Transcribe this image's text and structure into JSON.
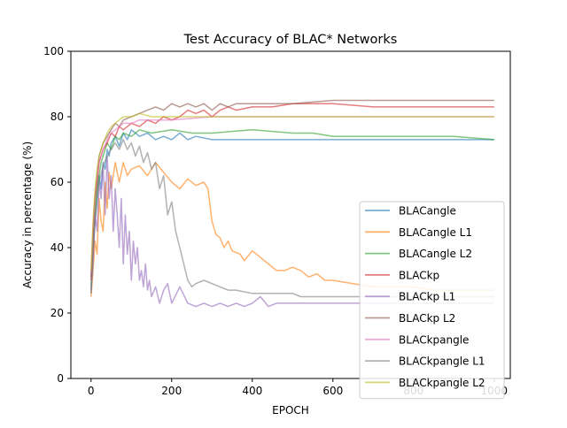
{
  "chart_data": {
    "type": "line",
    "title": "Test Accuracy of BLAC* Networks",
    "xlabel": "EPOCH",
    "ylabel": "Accuracy in percentage (%)",
    "xlim": [
      -50,
      1040
    ],
    "ylim": [
      0,
      100
    ],
    "xticks": [
      0,
      200,
      400,
      600,
      800,
      1000
    ],
    "yticks": [
      0,
      20,
      40,
      60,
      80,
      100
    ],
    "grid": false,
    "legend_position": "lower right",
    "series": [
      {
        "name": "BLACangle",
        "color": "#1f77b4",
        "points": [
          [
            0,
            26
          ],
          [
            5,
            40
          ],
          [
            10,
            48
          ],
          [
            15,
            55
          ],
          [
            20,
            62
          ],
          [
            25,
            58
          ],
          [
            30,
            66
          ],
          [
            35,
            64
          ],
          [
            40,
            70
          ],
          [
            45,
            68
          ],
          [
            50,
            72
          ],
          [
            60,
            74
          ],
          [
            70,
            71
          ],
          [
            80,
            75
          ],
          [
            90,
            73
          ],
          [
            100,
            76
          ],
          [
            120,
            74
          ],
          [
            140,
            75
          ],
          [
            160,
            73
          ],
          [
            180,
            74
          ],
          [
            200,
            73
          ],
          [
            220,
            75
          ],
          [
            240,
            73
          ],
          [
            260,
            74
          ],
          [
            300,
            73
          ],
          [
            350,
            73
          ],
          [
            400,
            73
          ],
          [
            600,
            73
          ],
          [
            800,
            73
          ],
          [
            1000,
            73
          ]
        ]
      },
      {
        "name": "BLACangle L1",
        "color": "#ff7f0e",
        "points": [
          [
            0,
            25
          ],
          [
            5,
            33
          ],
          [
            10,
            42
          ],
          [
            15,
            38
          ],
          [
            20,
            55
          ],
          [
            25,
            48
          ],
          [
            30,
            45
          ],
          [
            35,
            60
          ],
          [
            40,
            52
          ],
          [
            45,
            63
          ],
          [
            50,
            58
          ],
          [
            60,
            66
          ],
          [
            70,
            60
          ],
          [
            80,
            66
          ],
          [
            90,
            62
          ],
          [
            100,
            64
          ],
          [
            120,
            65
          ],
          [
            140,
            62
          ],
          [
            160,
            66
          ],
          [
            180,
            63
          ],
          [
            200,
            60
          ],
          [
            220,
            58
          ],
          [
            240,
            61
          ],
          [
            260,
            59
          ],
          [
            280,
            60
          ],
          [
            290,
            58
          ],
          [
            300,
            48
          ],
          [
            310,
            44
          ],
          [
            320,
            43
          ],
          [
            330,
            40
          ],
          [
            340,
            42
          ],
          [
            350,
            39
          ],
          [
            370,
            38
          ],
          [
            380,
            36
          ],
          [
            400,
            39
          ],
          [
            420,
            37
          ],
          [
            440,
            35
          ],
          [
            460,
            33
          ],
          [
            480,
            33
          ],
          [
            500,
            34
          ],
          [
            520,
            33
          ],
          [
            540,
            31
          ],
          [
            560,
            32
          ],
          [
            580,
            30
          ],
          [
            600,
            30
          ],
          [
            650,
            29
          ],
          [
            700,
            28
          ],
          [
            750,
            28
          ],
          [
            800,
            28
          ],
          [
            850,
            27
          ],
          [
            900,
            27
          ],
          [
            950,
            27
          ],
          [
            1000,
            27
          ]
        ]
      },
      {
        "name": "BLACangle L2",
        "color": "#2ca02c",
        "points": [
          [
            0,
            28
          ],
          [
            5,
            40
          ],
          [
            10,
            50
          ],
          [
            15,
            58
          ],
          [
            20,
            62
          ],
          [
            25,
            66
          ],
          [
            30,
            68
          ],
          [
            40,
            72
          ],
          [
            50,
            70
          ],
          [
            60,
            74
          ],
          [
            70,
            73
          ],
          [
            80,
            75
          ],
          [
            100,
            74
          ],
          [
            120,
            76
          ],
          [
            150,
            75
          ],
          [
            200,
            76
          ],
          [
            250,
            75
          ],
          [
            300,
            75
          ],
          [
            400,
            76
          ],
          [
            500,
            75
          ],
          [
            550,
            75
          ],
          [
            600,
            74
          ],
          [
            700,
            74
          ],
          [
            800,
            74
          ],
          [
            900,
            74
          ],
          [
            1000,
            73
          ]
        ]
      },
      {
        "name": "BLACkp",
        "color": "#d62728",
        "points": [
          [
            0,
            30
          ],
          [
            5,
            45
          ],
          [
            10,
            55
          ],
          [
            15,
            60
          ],
          [
            20,
            66
          ],
          [
            30,
            70
          ],
          [
            40,
            72
          ],
          [
            50,
            75
          ],
          [
            60,
            74
          ],
          [
            70,
            77
          ],
          [
            80,
            76
          ],
          [
            100,
            78
          ],
          [
            120,
            77
          ],
          [
            140,
            79
          ],
          [
            160,
            78
          ],
          [
            180,
            80
          ],
          [
            200,
            79
          ],
          [
            220,
            80
          ],
          [
            240,
            82
          ],
          [
            260,
            81
          ],
          [
            280,
            82
          ],
          [
            300,
            80
          ],
          [
            320,
            82
          ],
          [
            340,
            83
          ],
          [
            360,
            82
          ],
          [
            400,
            83
          ],
          [
            450,
            83
          ],
          [
            500,
            84
          ],
          [
            600,
            84
          ],
          [
            700,
            83
          ],
          [
            800,
            83
          ],
          [
            900,
            83
          ],
          [
            1000,
            83
          ]
        ]
      },
      {
        "name": "BLACkp L1",
        "color": "#9467bd",
        "points": [
          [
            0,
            27
          ],
          [
            5,
            35
          ],
          [
            10,
            50
          ],
          [
            15,
            45
          ],
          [
            20,
            60
          ],
          [
            25,
            55
          ],
          [
            30,
            65
          ],
          [
            35,
            50
          ],
          [
            40,
            68
          ],
          [
            45,
            55
          ],
          [
            50,
            62
          ],
          [
            55,
            45
          ],
          [
            60,
            58
          ],
          [
            65,
            50
          ],
          [
            70,
            40
          ],
          [
            75,
            55
          ],
          [
            80,
            35
          ],
          [
            85,
            50
          ],
          [
            90,
            38
          ],
          [
            95,
            45
          ],
          [
            100,
            30
          ],
          [
            105,
            42
          ],
          [
            110,
            35
          ],
          [
            115,
            40
          ],
          [
            120,
            30
          ],
          [
            125,
            33
          ],
          [
            130,
            28
          ],
          [
            135,
            35
          ],
          [
            140,
            27
          ],
          [
            145,
            30
          ],
          [
            150,
            25
          ],
          [
            160,
            28
          ],
          [
            170,
            23
          ],
          [
            180,
            27
          ],
          [
            190,
            29
          ],
          [
            200,
            23
          ],
          [
            220,
            28
          ],
          [
            240,
            23
          ],
          [
            260,
            22
          ],
          [
            280,
            23
          ],
          [
            300,
            22
          ],
          [
            320,
            23
          ],
          [
            340,
            22
          ],
          [
            360,
            23
          ],
          [
            380,
            22
          ],
          [
            400,
            23
          ],
          [
            420,
            25
          ],
          [
            440,
            22
          ],
          [
            460,
            23
          ],
          [
            500,
            23
          ],
          [
            600,
            23
          ],
          [
            700,
            23
          ],
          [
            800,
            23
          ],
          [
            900,
            23
          ],
          [
            1000,
            23
          ]
        ]
      },
      {
        "name": "BLACkp L2",
        "color": "#8c564b",
        "points": [
          [
            0,
            31
          ],
          [
            5,
            44
          ],
          [
            10,
            55
          ],
          [
            15,
            62
          ],
          [
            20,
            68
          ],
          [
            30,
            72
          ],
          [
            40,
            74
          ],
          [
            50,
            76
          ],
          [
            60,
            78
          ],
          [
            70,
            77
          ],
          [
            80,
            79
          ],
          [
            100,
            80
          ],
          [
            120,
            81
          ],
          [
            140,
            82
          ],
          [
            160,
            83
          ],
          [
            180,
            82
          ],
          [
            200,
            84
          ],
          [
            220,
            83
          ],
          [
            240,
            84
          ],
          [
            260,
            83
          ],
          [
            280,
            84
          ],
          [
            300,
            82
          ],
          [
            320,
            84
          ],
          [
            340,
            83
          ],
          [
            360,
            84
          ],
          [
            400,
            84
          ],
          [
            500,
            84
          ],
          [
            600,
            85
          ],
          [
            700,
            85
          ],
          [
            800,
            85
          ],
          [
            900,
            85
          ],
          [
            1000,
            85
          ]
        ]
      },
      {
        "name": "BLACkpangle",
        "color": "#e377c2",
        "points": [
          [
            0,
            32
          ],
          [
            5,
            46
          ],
          [
            10,
            56
          ],
          [
            15,
            62
          ],
          [
            20,
            66
          ],
          [
            30,
            70
          ],
          [
            40,
            73
          ],
          [
            50,
            75
          ],
          [
            60,
            76
          ],
          [
            70,
            77
          ],
          [
            80,
            78
          ],
          [
            100,
            78
          ],
          [
            120,
            79
          ],
          [
            150,
            79
          ],
          [
            200,
            79
          ],
          [
            300,
            80
          ],
          [
            400,
            80
          ],
          [
            500,
            80
          ],
          [
            600,
            80
          ],
          [
            700,
            80
          ],
          [
            800,
            80
          ],
          [
            900,
            80
          ],
          [
            1000,
            80
          ]
        ]
      },
      {
        "name": "BLACkpangle L1",
        "color": "#7f7f7f",
        "points": [
          [
            0,
            26
          ],
          [
            5,
            38
          ],
          [
            10,
            48
          ],
          [
            15,
            55
          ],
          [
            20,
            60
          ],
          [
            30,
            65
          ],
          [
            40,
            68
          ],
          [
            50,
            70
          ],
          [
            60,
            72
          ],
          [
            70,
            70
          ],
          [
            80,
            73
          ],
          [
            90,
            70
          ],
          [
            100,
            72
          ],
          [
            110,
            68
          ],
          [
            120,
            71
          ],
          [
            130,
            66
          ],
          [
            140,
            69
          ],
          [
            150,
            64
          ],
          [
            160,
            66
          ],
          [
            170,
            58
          ],
          [
            180,
            62
          ],
          [
            190,
            50
          ],
          [
            200,
            54
          ],
          [
            210,
            45
          ],
          [
            220,
            40
          ],
          [
            230,
            35
          ],
          [
            240,
            30
          ],
          [
            250,
            28
          ],
          [
            260,
            29
          ],
          [
            280,
            30
          ],
          [
            300,
            29
          ],
          [
            320,
            28
          ],
          [
            340,
            27
          ],
          [
            360,
            27
          ],
          [
            400,
            26
          ],
          [
            450,
            26
          ],
          [
            500,
            26
          ],
          [
            520,
            25
          ],
          [
            600,
            25
          ],
          [
            700,
            25
          ],
          [
            800,
            25
          ],
          [
            900,
            25
          ],
          [
            1000,
            25
          ]
        ]
      },
      {
        "name": "BLACkpangle L2",
        "color": "#bcbd22",
        "points": [
          [
            0,
            33
          ],
          [
            5,
            48
          ],
          [
            10,
            58
          ],
          [
            15,
            64
          ],
          [
            20,
            68
          ],
          [
            30,
            72
          ],
          [
            40,
            75
          ],
          [
            50,
            77
          ],
          [
            60,
            78
          ],
          [
            70,
            79
          ],
          [
            80,
            80
          ],
          [
            100,
            80
          ],
          [
            120,
            81
          ],
          [
            150,
            80
          ],
          [
            200,
            80
          ],
          [
            300,
            80
          ],
          [
            400,
            80
          ],
          [
            500,
            80
          ],
          [
            600,
            80
          ],
          [
            700,
            80
          ],
          [
            800,
            80
          ],
          [
            900,
            80
          ],
          [
            1000,
            80
          ]
        ]
      }
    ]
  }
}
